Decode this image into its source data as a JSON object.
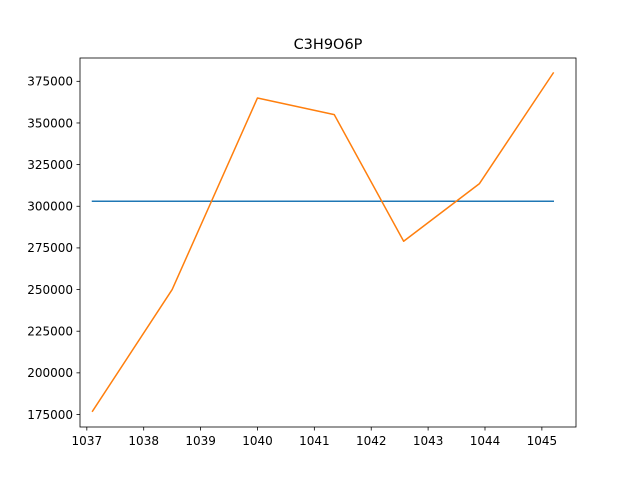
{
  "chart_data": {
    "type": "line",
    "title": "C3H9O6P",
    "xlabel": "",
    "ylabel": "",
    "xlim": [
      1036.88,
      1045.6
    ],
    "ylim": [
      167500,
      389000
    ],
    "xticks": [
      1037,
      1038,
      1039,
      1040,
      1041,
      1042,
      1043,
      1044,
      1045
    ],
    "yticks": [
      175000,
      200000,
      225000,
      250000,
      275000,
      300000,
      325000,
      350000,
      375000
    ],
    "grid": false,
    "series": [
      {
        "color": "#1f77b4",
        "x": [
          1037.1,
          1045.2
        ],
        "y": [
          303000,
          303000
        ]
      },
      {
        "color": "#ff7f0e",
        "x": [
          1037.1,
          1038.5,
          1040.0,
          1041.35,
          1042.57,
          1043.9,
          1045.2
        ],
        "y": [
          177000,
          250000,
          365000,
          355000,
          279000,
          313500,
          380000
        ]
      }
    ]
  }
}
